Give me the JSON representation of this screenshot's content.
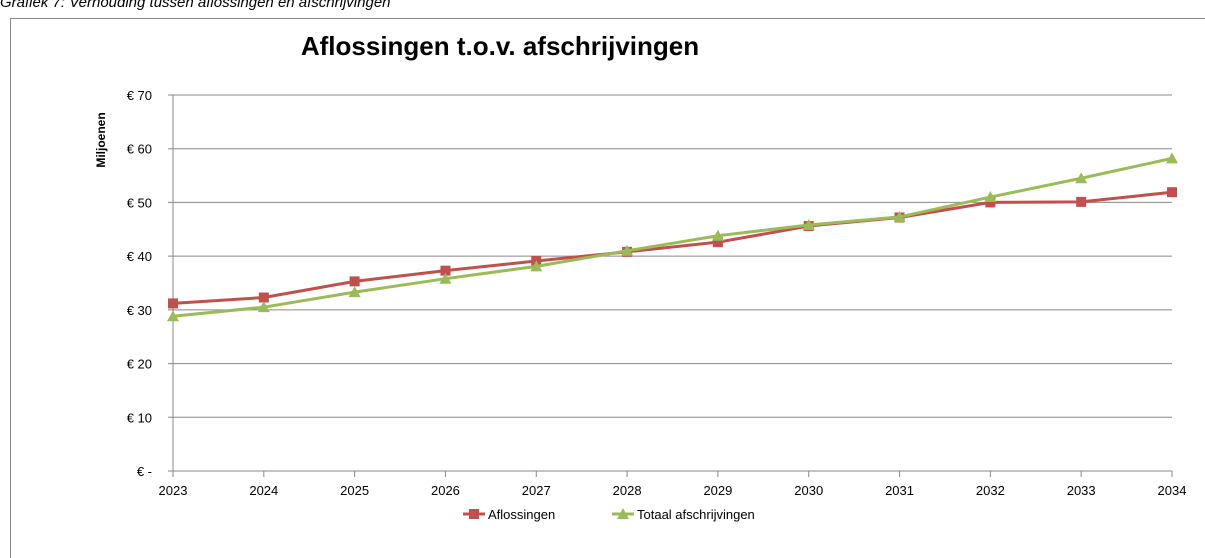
{
  "caption": "Grafiek 7: Verhouding tussen aflossingen en afschrijvingen",
  "chart_data": {
    "type": "line",
    "title": "Aflossingen t.o.v. afschrijvingen",
    "ylabel": "Miljoenen",
    "categories": [
      "2023",
      "2024",
      "2025",
      "2026",
      "2027",
      "2028",
      "2029",
      "2030",
      "2031",
      "2032",
      "2033",
      "2034"
    ],
    "series": [
      {
        "name": "Aflossingen",
        "color": "#c0504d",
        "marker": "square",
        "values": [
          31.2,
          32.3,
          35.3,
          37.3,
          39.1,
          40.8,
          42.6,
          45.6,
          47.2,
          50.0,
          50.1,
          51.9
        ]
      },
      {
        "name": "Totaal afschrijvingen",
        "color": "#9bbb59",
        "marker": "triangle",
        "values": [
          28.8,
          30.5,
          33.3,
          35.8,
          38.1,
          41.0,
          43.8,
          45.8,
          47.3,
          51.0,
          54.5,
          58.2
        ]
      }
    ],
    "ylim": [
      0,
      70
    ],
    "yticks": [
      {
        "value": 0,
        "label": "€ -"
      },
      {
        "value": 10,
        "label": "€ 10"
      },
      {
        "value": 20,
        "label": "€ 20"
      },
      {
        "value": 30,
        "label": "€ 30"
      },
      {
        "value": 40,
        "label": "€ 40"
      },
      {
        "value": 50,
        "label": "€ 50"
      },
      {
        "value": 60,
        "label": "€ 60"
      },
      {
        "value": 70,
        "label": "€ 70"
      }
    ],
    "grid": true,
    "legend": "bottom"
  }
}
